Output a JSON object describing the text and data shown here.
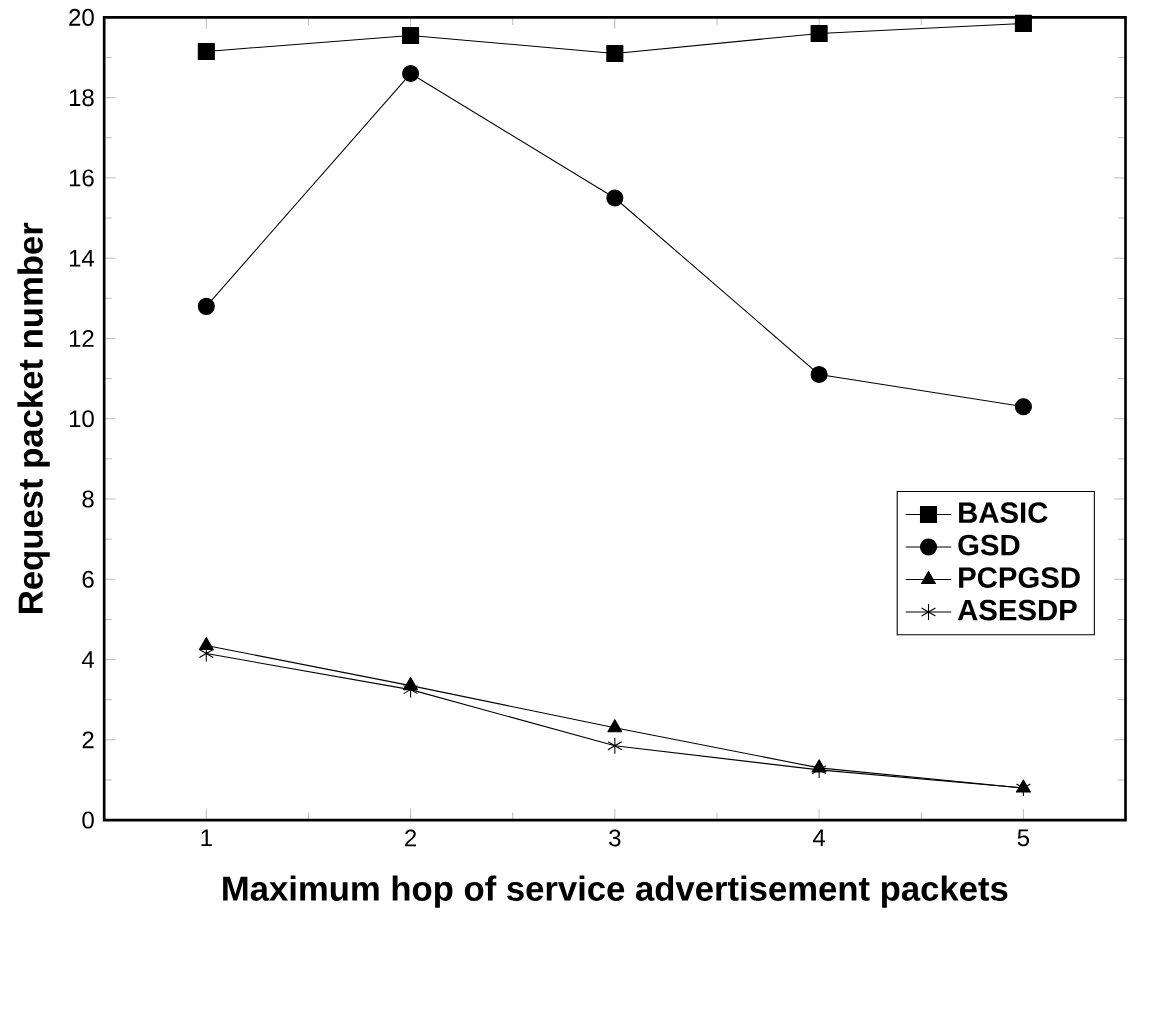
{
  "chart_data": {
    "type": "line",
    "xlabel": "Maximum hop of service advertisement packets",
    "ylabel": "Request packet number",
    "x": [
      1,
      2,
      3,
      4,
      5
    ],
    "xlim": [
      0.5,
      5.5
    ],
    "xticks": [
      1,
      2,
      3,
      4,
      5
    ],
    "ylim": [
      0,
      20
    ],
    "yticks": [
      0,
      2,
      4,
      6,
      8,
      10,
      12,
      14,
      16,
      18,
      20
    ],
    "legend": "right",
    "grid": false,
    "line_style": "solid",
    "series": [
      {
        "name": "BASIC",
        "color": "#000000",
        "marker": "square",
        "values": [
          19.15,
          19.55,
          19.1,
          19.6,
          19.85
        ]
      },
      {
        "name": "GSD",
        "color": "#000000",
        "marker": "circle",
        "values": [
          12.8,
          18.6,
          15.5,
          11.1,
          10.3
        ]
      },
      {
        "name": "PCPGSD",
        "color": "#000000",
        "marker": "triangle",
        "values": [
          4.35,
          3.35,
          2.3,
          1.3,
          0.8
        ]
      },
      {
        "name": "ASESDP",
        "color": "#000000",
        "marker": "cross",
        "values": [
          4.15,
          3.25,
          1.85,
          1.25,
          0.8
        ]
      }
    ]
  }
}
